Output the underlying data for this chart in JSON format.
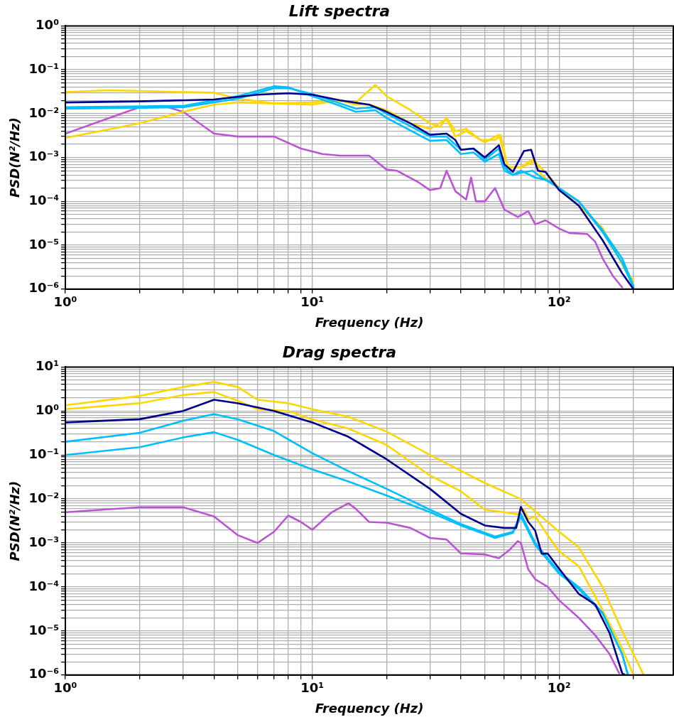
{
  "chart_data": [
    {
      "type": "line",
      "title": "Lift spectra",
      "xlabel": "Frequency (Hz)",
      "ylabel": "PSD(N²/Hz)",
      "log": "xy",
      "grid": true,
      "marker": "none",
      "xlim": [
        1,
        290
      ],
      "xticks": [
        {
          "value": 1,
          "label": "10⁰"
        },
        {
          "value": 10,
          "label": "10¹"
        },
        {
          "value": 100,
          "label": "10²"
        }
      ],
      "ylim": [
        1e-06,
        1
      ],
      "yticks": [
        {
          "value": 1e-06,
          "label": "10⁻⁶"
        },
        {
          "value": 1e-05,
          "label": "10⁻⁵"
        },
        {
          "value": 0.0001,
          "label": "10⁻⁴"
        },
        {
          "value": 0.001,
          "label": "10⁻³"
        },
        {
          "value": 0.01,
          "label": "10⁻²"
        },
        {
          "value": 0.1,
          "label": "10⁻¹"
        },
        {
          "value": 1,
          "label": "10⁰"
        }
      ],
      "series": [
        {
          "color": "#00008b",
          "x": [
            1,
            2,
            4,
            6,
            8,
            10,
            13,
            17,
            20,
            25,
            30,
            35,
            38,
            40,
            45,
            50,
            57,
            60,
            65,
            72,
            77,
            82,
            88,
            100,
            120,
            150,
            180,
            200
          ],
          "values": [
            0.018,
            0.019,
            0.021,
            0.027,
            0.029,
            0.027,
            0.02,
            0.016,
            0.011,
            0.006,
            0.0033,
            0.0035,
            0.0025,
            0.0015,
            0.0016,
            0.001,
            0.0019,
            0.0007,
            0.00047,
            0.0014,
            0.0015,
            0.0005,
            0.00047,
            0.00018,
            8e-05,
            1.3e-05,
            2.3e-06,
            1e-06
          ]
        },
        {
          "color": "#00bfff",
          "x": [
            1,
            3,
            5,
            7,
            8,
            10,
            13,
            15,
            18,
            20,
            30,
            35,
            40,
            45,
            50,
            57,
            60,
            65,
            70,
            80,
            90,
            100,
            120,
            150,
            180,
            200
          ],
          "values": [
            0.014,
            0.015,
            0.025,
            0.042,
            0.04,
            0.025,
            0.015,
            0.011,
            0.012,
            0.008,
            0.0024,
            0.0025,
            0.0012,
            0.0013,
            0.0008,
            0.0012,
            0.0005,
            0.0004,
            0.0005,
            0.00035,
            0.0003,
            0.0002,
            0.0001,
            2e-05,
            4e-06,
            1.1e-06
          ]
        },
        {
          "color": "#00bfff",
          "x": [
            1,
            3,
            5,
            7,
            8,
            10,
            13,
            15,
            18,
            20,
            30,
            35,
            40,
            45,
            50,
            57,
            60,
            65,
            70,
            78,
            85,
            100,
            120,
            150,
            180,
            200
          ],
          "values": [
            0.013,
            0.014,
            0.022,
            0.038,
            0.038,
            0.028,
            0.017,
            0.013,
            0.014,
            0.01,
            0.003,
            0.003,
            0.0015,
            0.0016,
            0.0009,
            0.0016,
            0.0006,
            0.0004,
            0.00045,
            0.0005,
            0.00035,
            0.0002,
            0.0001,
            2.2e-05,
            5e-06,
            1.2e-06
          ]
        },
        {
          "color": "#ffd700",
          "x": [
            1,
            1.5,
            3,
            4,
            5,
            7,
            10,
            12,
            15,
            18,
            20,
            25,
            30,
            33,
            35,
            38,
            42,
            48,
            55,
            58,
            62,
            70,
            78,
            85,
            100,
            120,
            150,
            200
          ],
          "values": [
            0.031,
            0.034,
            0.031,
            0.03,
            0.022,
            0.017,
            0.018,
            0.02,
            0.018,
            0.045,
            0.025,
            0.012,
            0.006,
            0.005,
            0.008,
            0.004,
            0.0045,
            0.0025,
            0.0025,
            0.0032,
            0.0006,
            0.0006,
            0.0009,
            0.0004,
            0.0002,
            0.0001,
            2e-05,
            1.5e-06
          ]
        },
        {
          "color": "#ffd700",
          "x": [
            1,
            2,
            3,
            4,
            5,
            7,
            10,
            13,
            15,
            17,
            20,
            25,
            30,
            35,
            38,
            42,
            50,
            57,
            62,
            70,
            80,
            90,
            100,
            150,
            200
          ],
          "values": [
            0.0028,
            0.006,
            0.011,
            0.016,
            0.018,
            0.017,
            0.016,
            0.02,
            0.016,
            0.016,
            0.012,
            0.006,
            0.0045,
            0.0075,
            0.003,
            0.004,
            0.0022,
            0.0033,
            0.0006,
            0.0006,
            0.0008,
            0.0004,
            0.0002,
            2.5e-05,
            1.2e-06
          ]
        },
        {
          "color": "#ba55d3",
          "x": [
            1,
            2,
            2.5,
            3,
            4,
            5,
            7,
            9,
            11,
            13,
            15,
            17,
            20,
            22,
            27,
            30,
            33,
            35,
            38,
            42,
            44,
            46,
            50,
            55,
            60,
            68,
            75,
            80,
            88,
            100,
            110,
            130,
            140,
            150,
            165,
            180
          ],
          "values": [
            0.0035,
            0.014,
            0.015,
            0.011,
            0.0035,
            0.003,
            0.003,
            0.0016,
            0.0012,
            0.0011,
            0.0011,
            0.0011,
            0.00053,
            0.0005,
            0.00027,
            0.00018,
            0.0002,
            0.0005,
            0.00017,
            0.00011,
            0.00035,
            0.0001,
            0.0001,
            0.0002,
            6.5e-05,
            4.4e-05,
            6e-05,
            3e-05,
            3.7e-05,
            2.4e-05,
            1.9e-05,
            1.8e-05,
            1.2e-05,
            5e-06,
            2e-06,
            1.1e-06
          ]
        }
      ]
    },
    {
      "type": "line",
      "title": "Drag spectra",
      "xlabel": "Frequency (Hz)",
      "ylabel": "PSD(N²/Hz)",
      "log": "xy",
      "grid": true,
      "marker": "none",
      "xlim": [
        1,
        290
      ],
      "xticks": [
        {
          "value": 1,
          "label": "10⁰"
        },
        {
          "value": 10,
          "label": "10¹"
        },
        {
          "value": 100,
          "label": "10²"
        }
      ],
      "ylim": [
        1e-06,
        10
      ],
      "yticks": [
        {
          "value": 1e-06,
          "label": "10⁻⁶"
        },
        {
          "value": 1e-05,
          "label": "10⁻⁵"
        },
        {
          "value": 0.0001,
          "label": "10⁻⁴"
        },
        {
          "value": 0.001,
          "label": "10⁻³"
        },
        {
          "value": 0.01,
          "label": "10⁻²"
        },
        {
          "value": 0.1,
          "label": "10⁻¹"
        },
        {
          "value": 1,
          "label": "10⁰"
        },
        {
          "value": 10,
          "label": "10¹"
        }
      ],
      "series": [
        {
          "color": "#00008b",
          "x": [
            1,
            2,
            3,
            4,
            5,
            7,
            10,
            14,
            20,
            30,
            40,
            50,
            60,
            67,
            70,
            75,
            80,
            85,
            90,
            100,
            120,
            140,
            160,
            180,
            185
          ],
          "values": [
            0.55,
            0.65,
            1.0,
            1.8,
            1.5,
            1.0,
            0.55,
            0.26,
            0.08,
            0.017,
            0.0046,
            0.0025,
            0.0022,
            0.0022,
            0.0066,
            0.003,
            0.0019,
            0.00057,
            0.00057,
            0.00026,
            7e-05,
            4e-05,
            9e-06,
            1.1e-06,
            1e-06
          ]
        },
        {
          "color": "#00bfff",
          "x": [
            1,
            2,
            3,
            4,
            5,
            7,
            10,
            14,
            20,
            30,
            40,
            50,
            55,
            65,
            70,
            80,
            100,
            120,
            150,
            180,
            190
          ],
          "values": [
            0.2,
            0.32,
            0.6,
            0.85,
            0.65,
            0.35,
            0.11,
            0.043,
            0.017,
            0.0057,
            0.0027,
            0.0017,
            0.0014,
            0.0018,
            0.0046,
            0.001,
            0.00022,
            0.0001,
            2.6e-05,
            3e-06,
            1e-06
          ]
        },
        {
          "color": "#00bfff",
          "x": [
            1,
            2,
            3,
            4,
            5,
            7,
            10,
            14,
            20,
            30,
            40,
            50,
            55,
            65,
            70,
            80,
            100,
            120,
            150,
            180,
            190
          ],
          "values": [
            0.1,
            0.15,
            0.25,
            0.33,
            0.22,
            0.1,
            0.047,
            0.025,
            0.012,
            0.005,
            0.0025,
            0.0016,
            0.0013,
            0.0017,
            0.004,
            0.0009,
            0.0002,
            9e-05,
            2.5e-05,
            3e-06,
            1e-06
          ]
        },
        {
          "color": "#ffd700",
          "x": [
            1,
            2,
            3,
            4,
            5,
            6,
            8,
            10,
            14,
            20,
            30,
            50,
            70,
            100,
            120,
            150,
            180,
            220
          ],
          "values": [
            1.35,
            2.2,
            3.5,
            4.6,
            3.5,
            1.8,
            1.5,
            1.1,
            0.74,
            0.34,
            0.1,
            0.023,
            0.01,
            0.0018,
            0.0008,
            0.0001,
            1e-05,
            1e-06
          ]
        },
        {
          "color": "#ffd700",
          "x": [
            1,
            2,
            3,
            4,
            5,
            6,
            8,
            10,
            14,
            20,
            30,
            40,
            50,
            60,
            68,
            72,
            75,
            80,
            90,
            100,
            120,
            150,
            180,
            200
          ],
          "values": [
            1.1,
            1.5,
            2.3,
            2.7,
            1.7,
            1.1,
            1.0,
            0.65,
            0.4,
            0.17,
            0.034,
            0.015,
            0.0057,
            0.005,
            0.0045,
            0.006,
            0.0035,
            0.004,
            0.0015,
            0.00065,
            0.0003,
            3e-05,
            4e-06,
            1e-06
          ]
        },
        {
          "color": "#ba55d3",
          "x": [
            1,
            2,
            3,
            4,
            5,
            6,
            7,
            8,
            9,
            10,
            12,
            14,
            15,
            17,
            20,
            25,
            30,
            35,
            40,
            50,
            57,
            63,
            68,
            70,
            75,
            80,
            90,
            100,
            120,
            140,
            160,
            175
          ],
          "values": [
            0.005,
            0.0065,
            0.0065,
            0.004,
            0.0015,
            0.001,
            0.0018,
            0.0042,
            0.003,
            0.002,
            0.005,
            0.008,
            0.006,
            0.003,
            0.0029,
            0.0022,
            0.0013,
            0.0012,
            0.00058,
            0.00055,
            0.00045,
            0.0007,
            0.0011,
            0.001,
            0.00025,
            0.00015,
            0.0001,
            5e-05,
            2e-05,
            8e-06,
            3e-06,
            1.1e-06
          ]
        }
      ]
    }
  ]
}
